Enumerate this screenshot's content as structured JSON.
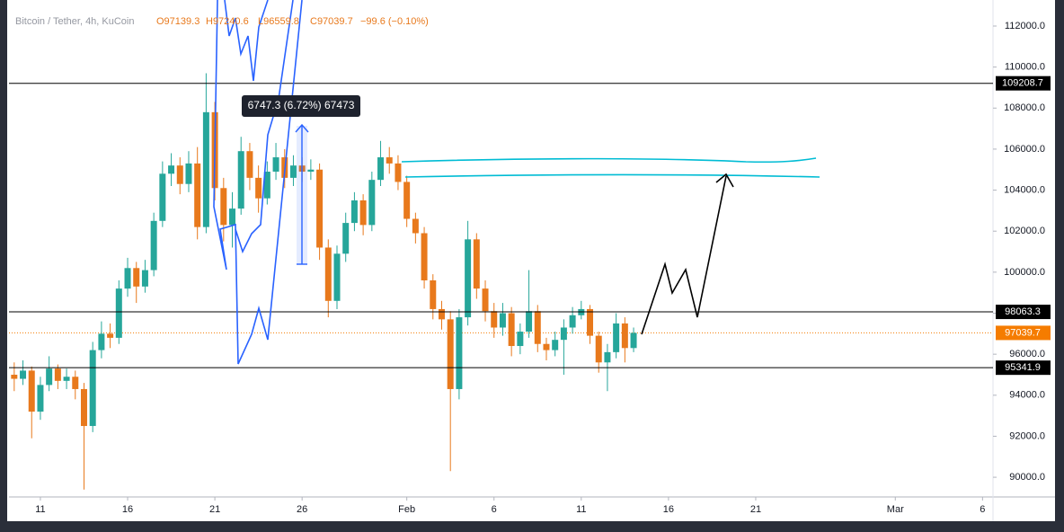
{
  "chart_data": {
    "type": "candlestick",
    "legend": {
      "symbol": "Bitcoin / Tether, 4h, KuCoin",
      "open": "O97139.3",
      "high": "H97240.6",
      "low": "L96559.8",
      "close": "C97039.7",
      "change": "−99.6 (−0.10%)"
    },
    "measure_label": "6747.3 (6.72%) 67473",
    "up_color": "#26a69a",
    "down_color": "#e8791c",
    "x": [
      9.5,
      10,
      10.5,
      11,
      11.5,
      12,
      12.5,
      13,
      13.5,
      14,
      14.5,
      15,
      15.5,
      16,
      16.5,
      17,
      17.5,
      18,
      18.5,
      19,
      19.5,
      20,
      20.5,
      21,
      21.5,
      22,
      22.5,
      23,
      23.5,
      24,
      24.5,
      25,
      25.5,
      26,
      26.5,
      27,
      27.5,
      28,
      28.5,
      29,
      29.5,
      30,
      30.5,
      31,
      31.5,
      32,
      32.5,
      33,
      33.5,
      34,
      34.5,
      35,
      35.5,
      36,
      36.5,
      37,
      37.5,
      38,
      38.5,
      39,
      39.5,
      40,
      40.5,
      41,
      41.5,
      42,
      42.5,
      43,
      43.5,
      44,
      44.5,
      45
    ],
    "open": [
      95000,
      94800,
      95200,
      93200,
      94500,
      95300,
      94700,
      94900,
      94300,
      92500,
      96200,
      97000,
      96800,
      99200,
      100200,
      99300,
      100100,
      102500,
      104800,
      105200,
      104300,
      105300,
      102200,
      107800,
      104100,
      102300,
      103100,
      105900,
      104600,
      103600,
      104900,
      105600,
      104600,
      105200,
      104900,
      105000,
      101200,
      98600,
      100900,
      102400,
      103500,
      102300,
      104500,
      105600,
      105300,
      104400,
      102600,
      101900,
      99600,
      98200,
      97700,
      94300,
      97800,
      101600,
      99200,
      98100,
      97300,
      98000,
      96400,
      97100,
      98100,
      96500,
      96200,
      96700,
      97300,
      97900,
      98200,
      96900,
      95600,
      96100,
      97500,
      96300
    ],
    "high": [
      95600,
      95700,
      95400,
      94900,
      95900,
      95500,
      95300,
      95200,
      94600,
      96600,
      97600,
      97500,
      99600,
      100700,
      100500,
      100600,
      102900,
      105400,
      105800,
      105600,
      105900,
      106100,
      109700,
      108300,
      104600,
      103900,
      106600,
      106300,
      105200,
      105400,
      106300,
      106000,
      105700,
      105600,
      105500,
      105300,
      101600,
      101300,
      102900,
      103900,
      103800,
      104900,
      106400,
      106100,
      105700,
      104700,
      102900,
      102200,
      99900,
      98600,
      98100,
      98200,
      102500,
      101900,
      99600,
      98500,
      98500,
      98300,
      97500,
      100100,
      98400,
      96800,
      97100,
      97700,
      98300,
      98600,
      98400,
      97100,
      96500,
      98000,
      97800,
      97300
    ],
    "low": [
      94200,
      94500,
      91900,
      92800,
      94200,
      94300,
      94300,
      93800,
      89400,
      92200,
      95800,
      96300,
      96500,
      98800,
      98500,
      99000,
      99800,
      102200,
      104200,
      103800,
      103900,
      101600,
      101900,
      103500,
      101500,
      101200,
      102800,
      104000,
      102900,
      103300,
      104500,
      104100,
      104200,
      104400,
      104500,
      100600,
      97800,
      98200,
      100500,
      102000,
      101800,
      102000,
      104200,
      104800,
      104000,
      102200,
      101400,
      99200,
      97700,
      97200,
      90300,
      93800,
      97400,
      98700,
      97600,
      96800,
      96900,
      95900,
      96000,
      96800,
      96100,
      95700,
      95900,
      95000,
      97000,
      97700,
      96500,
      95100,
      94200,
      95800,
      95600,
      96100
    ],
    "close": [
      94800,
      95200,
      93200,
      94500,
      95300,
      94700,
      94900,
      94300,
      92500,
      96200,
      97000,
      96800,
      99200,
      100200,
      99300,
      100100,
      102500,
      104800,
      105200,
      104300,
      105300,
      102200,
      107800,
      104100,
      102300,
      103100,
      105900,
      104600,
      103600,
      104900,
      105600,
      104600,
      105200,
      104900,
      105000,
      101200,
      98600,
      100900,
      102400,
      103500,
      102300,
      104500,
      105600,
      105300,
      104400,
      102600,
      101900,
      99600,
      98200,
      97700,
      94300,
      97800,
      101600,
      99200,
      98100,
      97300,
      98000,
      96400,
      97100,
      98100,
      96500,
      96200,
      96700,
      97300,
      97900,
      98200,
      96900,
      95600,
      96100,
      97500,
      96300,
      97040
    ],
    "levels": [
      109208.7,
      98063.3,
      95341.9
    ],
    "last_price": 97039.7,
    "last_price_color": "#f57c00",
    "xlim": [
      9.2,
      65.6
    ],
    "xticks": [
      {
        "value": 11,
        "label": "11"
      },
      {
        "value": 16,
        "label": "16"
      },
      {
        "value": 21,
        "label": "21"
      },
      {
        "value": 26,
        "label": "26"
      },
      {
        "value": 32,
        "label": "Feb"
      },
      {
        "value": 37,
        "label": "6"
      },
      {
        "value": 42,
        "label": "11"
      },
      {
        "value": 47,
        "label": "16"
      },
      {
        "value": 52,
        "label": "21"
      },
      {
        "value": 60,
        "label": "Mar"
      },
      {
        "value": 65,
        "label": "6"
      }
    ],
    "ylim": [
      89040,
      113270
    ],
    "yticks": [
      {
        "value": 90000,
        "label": "90000.0"
      },
      {
        "value": 92000,
        "label": "92000.0"
      },
      {
        "value": 94000,
        "label": "94000.0"
      },
      {
        "value": 96000,
        "label": "96000.0"
      },
      {
        "value": 98000,
        "label": "98000.0"
      },
      {
        "value": 100000,
        "label": "100000.0"
      },
      {
        "value": 102000,
        "label": "102000.0"
      },
      {
        "value": 104000,
        "label": "104000.0"
      },
      {
        "value": 106000,
        "label": "106000.0"
      },
      {
        "value": 108000,
        "label": "108000.0"
      },
      {
        "value": 110000,
        "label": "110000.0"
      },
      {
        "value": 112000,
        "label": "112000.0"
      }
    ]
  }
}
